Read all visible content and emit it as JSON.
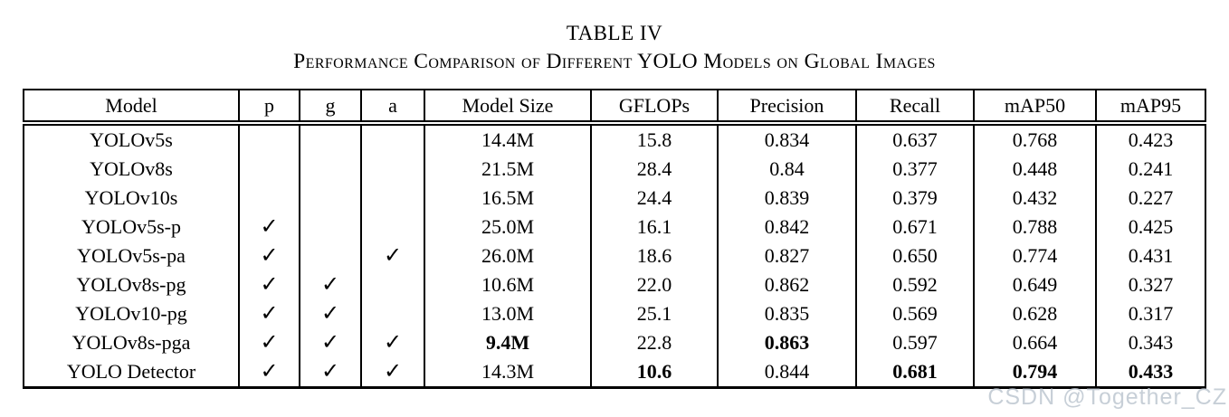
{
  "title": "TABLE IV",
  "subtitle": "Performance Comparison of Different YOLO Models on Global Images",
  "watermark": "CSDN @Together_CZ",
  "table": {
    "columns": [
      "Model",
      "p",
      "g",
      "a",
      "Model Size",
      "GFLOPs",
      "Precision",
      "Recall",
      "mAP50",
      "mAP95"
    ],
    "check_glyph": "✓",
    "rows": [
      [
        "YOLOv5s",
        "",
        "",
        "",
        "14.4M",
        "15.8",
        "0.834",
        "0.637",
        "0.768",
        "0.423"
      ],
      [
        "YOLOv8s",
        "",
        "",
        "",
        "21.5M",
        "28.4",
        "0.84",
        "0.377",
        "0.448",
        "0.241"
      ],
      [
        "YOLOv10s",
        "",
        "",
        "",
        "16.5M",
        "24.4",
        "0.839",
        "0.379",
        "0.432",
        "0.227"
      ],
      [
        "YOLOv5s-p",
        "✓",
        "",
        "",
        "25.0M",
        "16.1",
        "0.842",
        "0.671",
        "0.788",
        "0.425"
      ],
      [
        "YOLOv5s-pa",
        "✓",
        "",
        "✓",
        "26.0M",
        "18.6",
        "0.827",
        "0.650",
        "0.774",
        "0.431"
      ],
      [
        "YOLOv8s-pg",
        "✓",
        "✓",
        "",
        "10.6M",
        "22.0",
        "0.862",
        "0.592",
        "0.649",
        "0.327"
      ],
      [
        "YOLOv10-pg",
        "✓",
        "✓",
        "",
        "13.0M",
        "25.1",
        "0.835",
        "0.569",
        "0.628",
        "0.317"
      ],
      [
        "YOLOv8s-pga",
        "✓",
        "✓",
        "✓",
        "9.4M",
        "22.8",
        "0.863",
        "0.597",
        "0.664",
        "0.343"
      ],
      [
        "YOLO Detector",
        "✓",
        "✓",
        "✓",
        "14.3M",
        "10.6",
        "0.844",
        "0.681",
        "0.794",
        "0.433"
      ]
    ],
    "bold_cells": [
      [
        7,
        4
      ],
      [
        7,
        6
      ],
      [
        8,
        5
      ],
      [
        8,
        7
      ],
      [
        8,
        8
      ],
      [
        8,
        9
      ]
    ]
  }
}
